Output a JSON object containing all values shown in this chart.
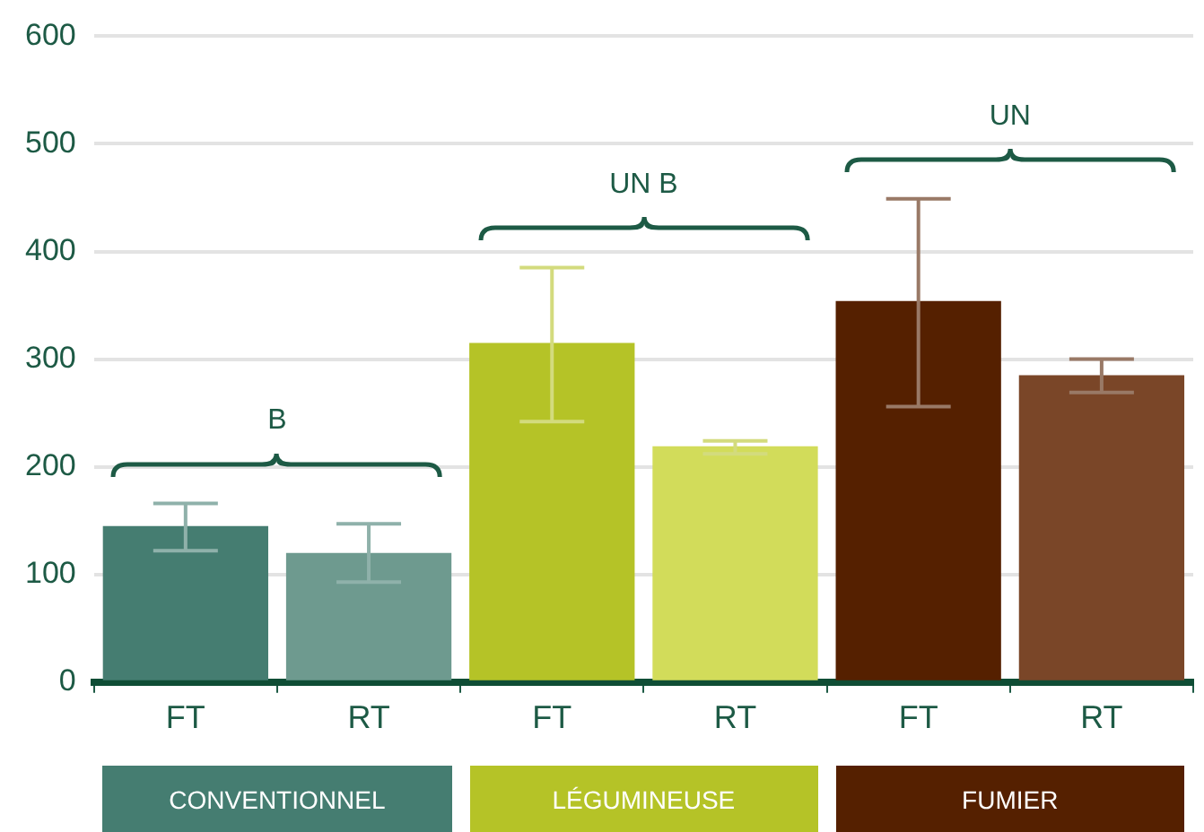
{
  "chart_data": {
    "type": "bar",
    "categories": [
      "FT",
      "RT",
      "FT",
      "RT",
      "FT",
      "RT"
    ],
    "series": [
      {
        "name": "CONVENTIONNEL",
        "color": "#457d71",
        "colors": [
          "#457d71",
          "#6e9a8f",
          null,
          null,
          null,
          null
        ],
        "values": [
          145,
          120,
          null,
          null,
          null,
          null
        ],
        "errors": [
          [
            122,
            166
          ],
          [
            93,
            147
          ],
          null,
          null,
          null,
          null
        ]
      },
      {
        "name": "LÉGUMINEUSE",
        "color": "#b5c327",
        "colors": [
          null,
          null,
          "#b5c327",
          "#d2dc5a",
          null,
          null
        ],
        "values": [
          null,
          null,
          315,
          219,
          null,
          null
        ],
        "errors": [
          null,
          null,
          [
            242,
            385
          ],
          [
            212,
            224
          ],
          null,
          null
        ]
      },
      {
        "name": "FUMIER",
        "color": "#552000",
        "colors": [
          null,
          null,
          null,
          null,
          "#552000",
          "#7a4628"
        ],
        "values": [
          null,
          null,
          null,
          null,
          354,
          285
        ],
        "errors": [
          null,
          null,
          null,
          null,
          [
            256,
            449
          ],
          [
            269,
            300
          ]
        ]
      }
    ],
    "annotations": [
      "B",
      "UN B",
      "UN"
    ],
    "ylim": [
      0,
      600
    ],
    "yticks": [
      0,
      100,
      200,
      300,
      400,
      500,
      600
    ],
    "grid": "y",
    "legend": false
  }
}
